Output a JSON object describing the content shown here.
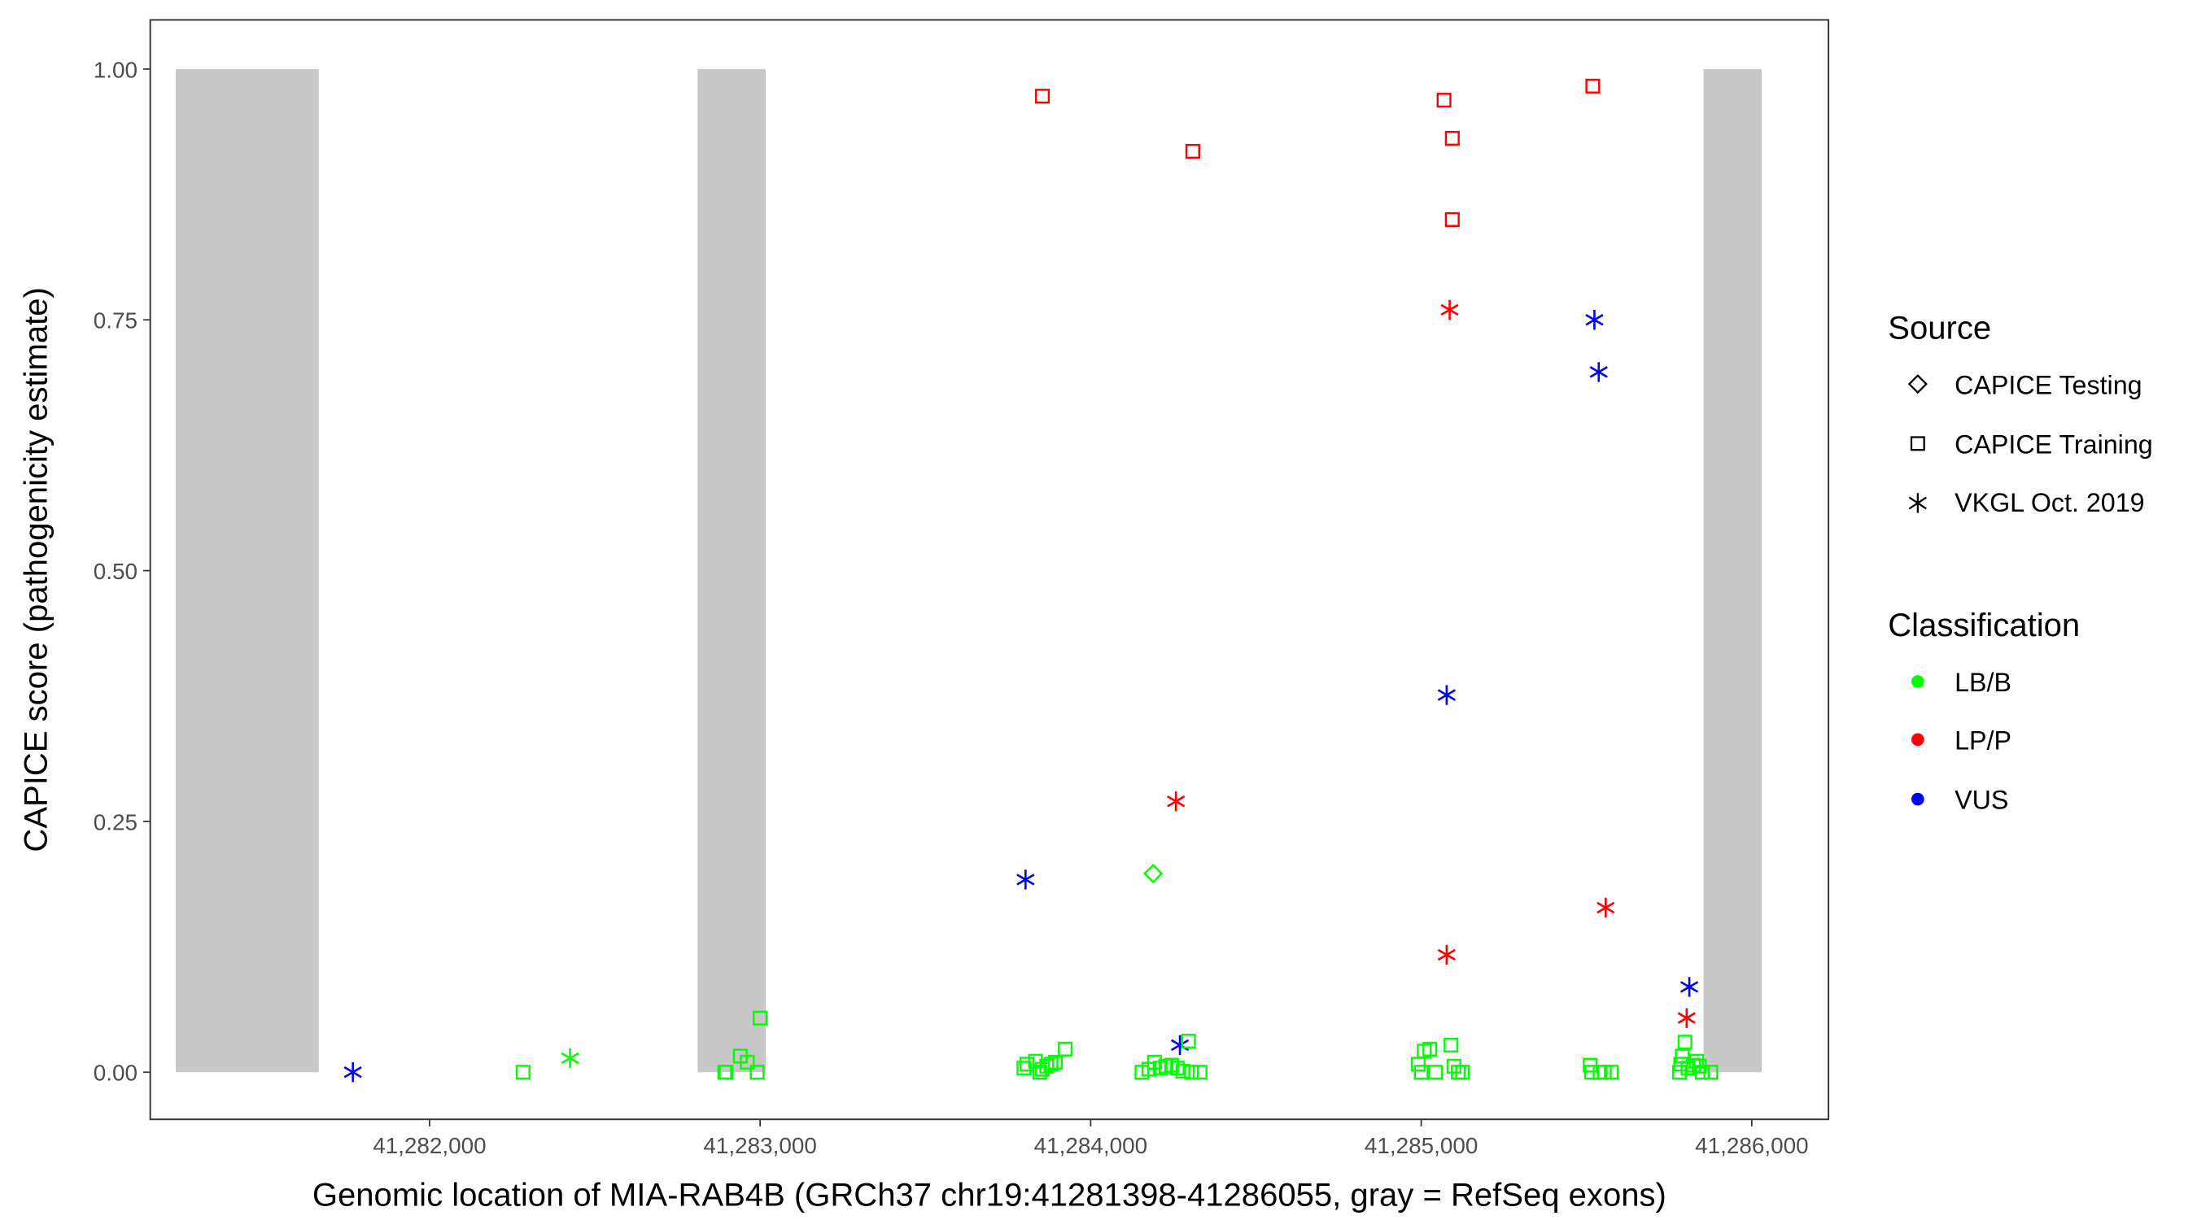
{
  "chart_data": {
    "type": "scatter",
    "xlabel": "Genomic location of MIA-RAB4B (GRCh37 chr19:41281398-41286055, gray = RefSeq exons)",
    "ylabel": "CAPICE score (pathogenicity estimate)",
    "xlim": [
      41281155,
      41286232
    ],
    "ylim": [
      -0.047,
      1.049
    ],
    "grid": false,
    "legend_position": "right",
    "x_ticks": [
      41282000,
      41283000,
      41284000,
      41285000,
      41286000
    ],
    "x_tick_labels": [
      "41,282,000",
      "41,283,000",
      "41,284,000",
      "41,285,000",
      "41,286,000"
    ],
    "y_ticks": [
      0,
      0.25,
      0.5,
      0.75,
      1.0
    ],
    "y_tick_labels": [
      "0.00",
      "0.25",
      "0.50",
      "0.75",
      "1.00"
    ],
    "exons": [
      [
        41281232,
        41281665
      ],
      [
        41282811,
        41283017
      ],
      [
        41285854,
        41286030
      ]
    ],
    "exon_color": "#c8c8c8",
    "legend": {
      "source_title": "Source",
      "sources": [
        {
          "key": "T",
          "label": "CAPICE Testing",
          "shape": "diamond"
        },
        {
          "key": "S",
          "label": "CAPICE Training",
          "shape": "square"
        },
        {
          "key": "V",
          "label": "VKGL Oct. 2019",
          "shape": "asterisk"
        }
      ],
      "class_title": "Classification",
      "classes": [
        {
          "key": "LB",
          "label": "LB/B",
          "color": "#00ff00"
        },
        {
          "key": "LP",
          "label": "LP/P",
          "color": "#ff0000"
        },
        {
          "key": "VUS",
          "label": "VUS",
          "color": "#0000ff"
        }
      ]
    },
    "points": [
      [
        41281768,
        0,
        "V",
        "VUS"
      ],
      [
        41282425,
        0.014,
        "V",
        "LB"
      ],
      [
        41282283,
        0,
        "S",
        "LB"
      ],
      [
        41282893,
        0,
        "S",
        "LB"
      ],
      [
        41282897,
        0,
        "S",
        "LB"
      ],
      [
        41282940,
        0.016,
        "S",
        "LB"
      ],
      [
        41282961,
        0.01,
        "S",
        "LB"
      ],
      [
        41282991,
        0,
        "S",
        "LB"
      ],
      [
        41283000,
        0.054,
        "S",
        "LB"
      ],
      [
        41283854,
        0.973,
        "S",
        "LP"
      ],
      [
        41284309,
        0.918,
        "S",
        "LP"
      ],
      [
        41284258,
        0.27,
        "V",
        "LP"
      ],
      [
        41283803,
        0.192,
        "V",
        "VUS"
      ],
      [
        41284189,
        0.198,
        "T",
        "LB"
      ],
      [
        41284270,
        0.027,
        "V",
        "VUS"
      ],
      [
        41283798,
        0.004,
        "S",
        "LB"
      ],
      [
        41283807,
        0.008,
        "S",
        "LB"
      ],
      [
        41283833,
        0.011,
        "S",
        "LB"
      ],
      [
        41283846,
        0,
        "S",
        "LB"
      ],
      [
        41283854,
        0.003,
        "S",
        "LB"
      ],
      [
        41283867,
        0.006,
        "S",
        "LB"
      ],
      [
        41283880,
        0.008,
        "S",
        "LB"
      ],
      [
        41283893,
        0.01,
        "S",
        "LB"
      ],
      [
        41283923,
        0.023,
        "S",
        "LB"
      ],
      [
        41284155,
        0,
        "S",
        "LB"
      ],
      [
        41284176,
        0.003,
        "S",
        "LB"
      ],
      [
        41284193,
        0.01,
        "S",
        "LB"
      ],
      [
        41284210,
        0.004,
        "S",
        "LB"
      ],
      [
        41284228,
        0.006,
        "S",
        "LB"
      ],
      [
        41284245,
        0.007,
        "S",
        "LB"
      ],
      [
        41284262,
        0.004,
        "S",
        "LB"
      ],
      [
        41284279,
        0.001,
        "S",
        "LB"
      ],
      [
        41284296,
        0.031,
        "S",
        "LB"
      ],
      [
        41284305,
        0,
        "S",
        "LB"
      ],
      [
        41284331,
        0,
        "S",
        "LB"
      ],
      [
        41285069,
        0.969,
        "S",
        "LP"
      ],
      [
        41285094,
        0.931,
        "S",
        "LP"
      ],
      [
        41285094,
        0.85,
        "S",
        "LP"
      ],
      [
        41285086,
        0.76,
        "V",
        "LP"
      ],
      [
        41285077,
        0.376,
        "V",
        "VUS"
      ],
      [
        41285077,
        0.117,
        "V",
        "LP"
      ],
      [
        41284991,
        0.008,
        "S",
        "LB"
      ],
      [
        41285009,
        0.021,
        "S",
        "LB"
      ],
      [
        41285026,
        0.023,
        "S",
        "LB"
      ],
      [
        41285043,
        0,
        "S",
        "LB"
      ],
      [
        41285000,
        0,
        "S",
        "LB"
      ],
      [
        41285090,
        0.027,
        "S",
        "LB"
      ],
      [
        41285099,
        0.006,
        "S",
        "LB"
      ],
      [
        41285112,
        0,
        "S",
        "LB"
      ],
      [
        41285125,
        0,
        "S",
        "LB"
      ],
      [
        41285519,
        0.983,
        "S",
        "LP"
      ],
      [
        41285524,
        0.75,
        "V",
        "VUS"
      ],
      [
        41285537,
        0.698,
        "V",
        "VUS"
      ],
      [
        41285558,
        0.164,
        "V",
        "LP"
      ],
      [
        41285511,
        0.007,
        "S",
        "LB"
      ],
      [
        41285515,
        0,
        "S",
        "LB"
      ],
      [
        41285541,
        0,
        "S",
        "LB"
      ],
      [
        41285554,
        0,
        "S",
        "LB"
      ],
      [
        41285575,
        0,
        "S",
        "LB"
      ],
      [
        41285811,
        0.085,
        "V",
        "VUS"
      ],
      [
        41285803,
        0.054,
        "V",
        "LP"
      ],
      [
        41285798,
        0.03,
        "S",
        "LB"
      ],
      [
        41285790,
        0.016,
        "S",
        "LB"
      ],
      [
        41285785,
        0.008,
        "S",
        "LB"
      ],
      [
        41285781,
        0,
        "S",
        "LB"
      ],
      [
        41285807,
        0.004,
        "S",
        "LB"
      ],
      [
        41285824,
        0.007,
        "S",
        "LB"
      ],
      [
        41285833,
        0.011,
        "S",
        "LB"
      ],
      [
        41285841,
        0.006,
        "S",
        "LB"
      ],
      [
        41285850,
        0,
        "S",
        "LB"
      ],
      [
        41285876,
        0,
        "S",
        "LB"
      ]
    ]
  }
}
